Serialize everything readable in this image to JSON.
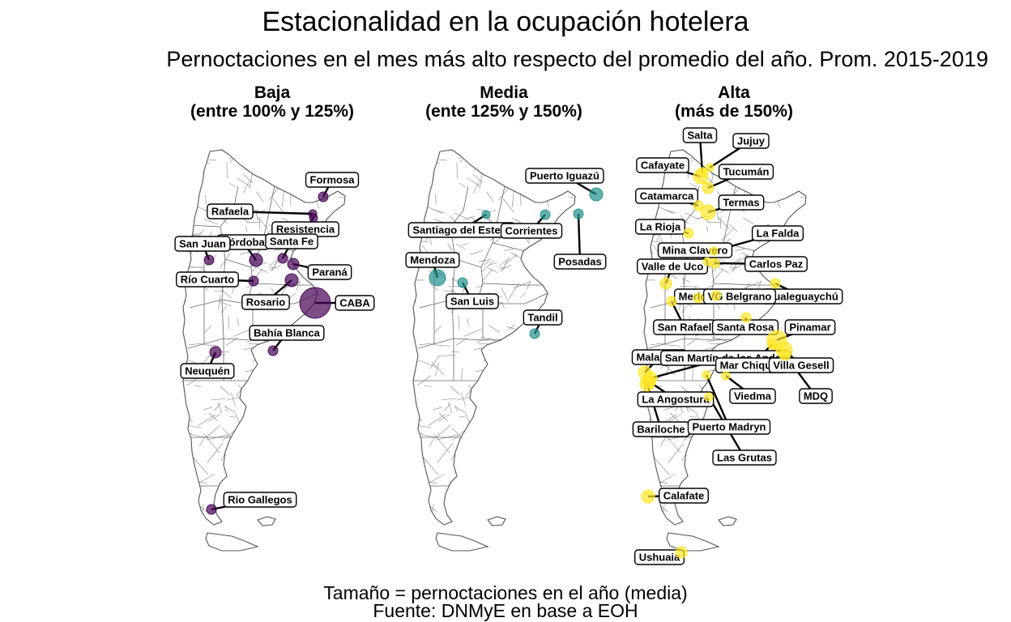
{
  "title": "Estacionalidad en la ocupación hotelera",
  "subtitle": "Pernoctaciones en el mes más alto respecto del promedio del año. Prom. 2015-2019",
  "panels": [
    {
      "id": "baja",
      "title_line1": "Baja",
      "title_line2": "(entre 100% y 125%)",
      "color": "#440154",
      "places": [
        "Formosa",
        "Rafaela",
        "Resistencia",
        "Córdoba",
        "Santa Fe",
        "San Juan",
        "Paraná",
        "Río Cuarto",
        "Rosario",
        "CABA",
        "Bahía Blanca",
        "Neuquén",
        "Rio Gallegos"
      ]
    },
    {
      "id": "media",
      "title_line1": "Media",
      "title_line2": "(ente 125% y 150%)",
      "color": "#21908C",
      "places": [
        "Puerto Iguazú",
        "Santiago del Estero",
        "Corrientes",
        "Posadas",
        "Mendoza",
        "San Luis",
        "Tandil"
      ]
    },
    {
      "id": "alta",
      "title_line1": "Alta",
      "title_line2": "(más de 150%)",
      "color": "#FDE725",
      "places": [
        "Salta",
        "Jujuy",
        "Cafayate",
        "Tucumán",
        "Catamarca",
        "Termas",
        "La Rioja",
        "La Falda",
        "Mina Clavero",
        "Carlos Paz",
        "Valle de Uco",
        "Merlo",
        "Gualeguaychú",
        "VG Belgrano",
        "San Rafael",
        "Santa Rosa",
        "Pinamar",
        "Malargüe",
        "San Martín de los Andes",
        "Mar Chiquita",
        "Villa Gesell",
        "La Angostura",
        "Viedma",
        "MDQ",
        "Bariloche",
        "Puerto Madryn",
        "Las Grutas",
        "Calafate",
        "Ushuaia"
      ]
    }
  ],
  "caption_line1": "Tamaño = pernoctaciones en el año (media)",
  "caption_line2": "Fuente: DNMyE en base a EOH"
}
